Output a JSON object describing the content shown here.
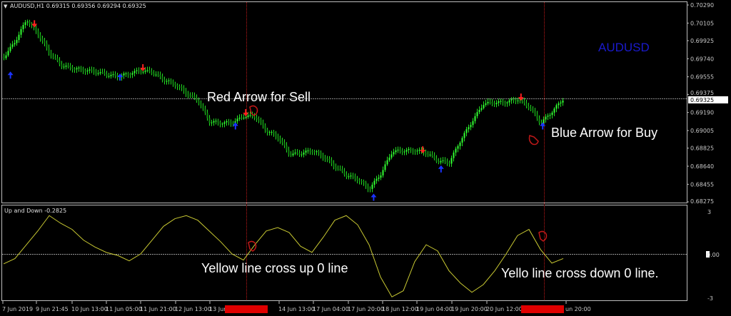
{
  "header": {
    "symbol_info": "AUDUSD,H1  0.69315 0.69356 0.69294 0.69325",
    "watermark": "AUDUSD"
  },
  "indicator": {
    "label": "Up and Down -0.2825",
    "yticks": [
      "3",
      "0.00",
      "-3"
    ]
  },
  "annotations": {
    "sell": "Red Arrow for Sell",
    "buy": "Blue Arrow for Buy",
    "cross_up": "Yellow line cross up 0 line",
    "cross_down": "Yello line cross down 0 line."
  },
  "time_axis": [
    "7 Jun 2019",
    "9 Jun 21:45",
    "10 Jun 13:00",
    "11 Jun 05:00",
    "11 Jun 21:00",
    "12 Jun 13:00",
    "13 Jun",
    "14 Jun 13:00",
    "17 Jun 04:00",
    "17 Jun 20:00",
    "18 Jun 12:00",
    "19 Jun 04:00",
    "19 Jun 20:00",
    "20 Jun 12:00",
    "un 20:00"
  ],
  "colors": {
    "bull": "#22dd22",
    "sell_arrow": "#ff2020",
    "buy_arrow": "#1a33ff",
    "indicator_line": "#c8c832",
    "crosshair": "#c01818",
    "watermark": "#1a1acc"
  },
  "chart_data": [
    {
      "type": "line",
      "title": "AUDUSD,H1",
      "ylim": [
        0.68275,
        0.7029
      ],
      "yticks": [
        "0.70290",
        "0.70105",
        "0.69925",
        "0.69740",
        "0.69555",
        "0.69375",
        "0.69190",
        "0.69005",
        "0.68825",
        "0.68640",
        "0.68455",
        "0.68275"
      ],
      "current_price": "0.69325",
      "close": [
        0.69757,
        0.69918,
        0.70144,
        0.69998,
        0.69791,
        0.69672,
        0.69646,
        0.69627,
        0.69605,
        0.69575,
        0.6956,
        0.6959,
        0.6962,
        0.69598,
        0.69526,
        0.69483,
        0.69385,
        0.69305,
        0.69097,
        0.69086,
        0.69085,
        0.6915,
        0.6915,
        0.69008,
        0.6894,
        0.6876,
        0.6877,
        0.68805,
        0.6874,
        0.6863,
        0.68545,
        0.6851,
        0.6841,
        0.6856,
        0.6879,
        0.688,
        0.68806,
        0.68775,
        0.6869,
        0.6868,
        0.6891,
        0.691,
        0.6928,
        0.6929,
        0.693,
        0.69325,
        0.6924,
        0.6908,
        0.692,
        0.69334
      ],
      "sell_signals": [
        {
          "index": 2.7,
          "price": 0.7009
        },
        {
          "index": 12.2,
          "price": 0.6964
        },
        {
          "index": 21.2,
          "price": 0.6918
        },
        {
          "index": 36.7,
          "price": 0.688
        },
        {
          "index": 45.3,
          "price": 0.6934
        }
      ],
      "buy_signals": [
        {
          "index": 0.6,
          "price": 0.6958
        },
        {
          "index": 10.2,
          "price": 0.6956
        },
        {
          "index": 20.3,
          "price": 0.6906
        },
        {
          "index": 32.4,
          "price": 0.6833
        },
        {
          "index": 38.3,
          "price": 0.6862
        },
        {
          "index": 47.2,
          "price": 0.6906
        }
      ]
    },
    {
      "type": "line",
      "name": "Up and Down",
      "ylim": [
        -3,
        3
      ],
      "values": [
        -0.65,
        -0.3,
        0.6,
        1.5,
        2.5,
        2.0,
        1.6,
        0.9,
        0.45,
        0.1,
        -0.1,
        -0.45,
        0.0,
        0.9,
        1.8,
        2.3,
        2.5,
        2.2,
        1.5,
        0.8,
        0.0,
        -0.4,
        0.6,
        1.5,
        1.72,
        1.4,
        0.5,
        0.1,
        1.1,
        2.2,
        2.5,
        1.9,
        0.6,
        -1.5,
        -2.8,
        -2.4,
        -0.5,
        0.6,
        0.2,
        -1.1,
        -1.9,
        -2.5,
        -2.0,
        -1.1,
        0.0,
        1.2,
        1.6,
        0.3,
        -0.6,
        -0.3
      ]
    }
  ]
}
